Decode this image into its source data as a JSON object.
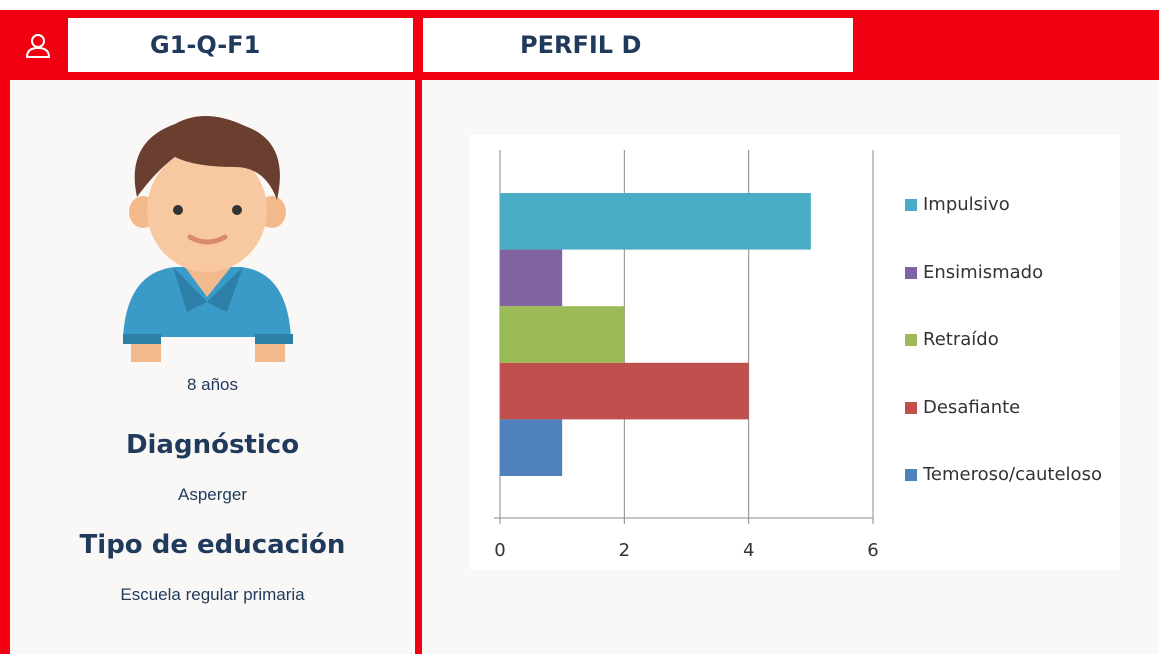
{
  "header": {
    "code": "G1-Q-F1",
    "profile": "PERFIL D"
  },
  "student": {
    "age": "8 años",
    "diagnosis_label": "Diagnóstico",
    "diagnosis": "Asperger",
    "education_label": "Tipo de educación",
    "education": "Escuela regular primaria"
  },
  "chart_data": {
    "type": "bar",
    "orientation": "horizontal",
    "series": [
      {
        "name": "Impulsivo",
        "color": "#4bacc6",
        "values": [
          5
        ]
      },
      {
        "name": "Ensimismado",
        "color": "#8064a2",
        "values": [
          1
        ]
      },
      {
        "name": "Retraído",
        "color": "#9bbb59",
        "values": [
          2
        ]
      },
      {
        "name": "Desafiante",
        "color": "#c0504d",
        "values": [
          4
        ]
      },
      {
        "name": "Temeroso/cauteloso",
        "color": "#4f81bd",
        "values": [
          1
        ]
      }
    ],
    "xlim": [
      0,
      6
    ],
    "xticks": [
      0,
      2,
      4,
      6
    ],
    "grid": true,
    "legend": "right"
  }
}
